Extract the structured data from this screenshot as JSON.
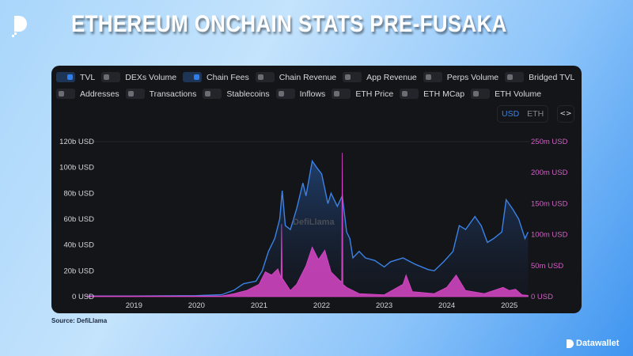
{
  "header": {
    "title": "ETHEREUM ONCHAIN STATS PRE-FUSAKA"
  },
  "legend": {
    "row1": [
      {
        "label": "TVL",
        "on": true
      },
      {
        "label": "DEXs Volume",
        "on": false
      },
      {
        "label": "Chain Fees",
        "on": true
      },
      {
        "label": "Chain Revenue",
        "on": false
      },
      {
        "label": "App Revenue",
        "on": false
      },
      {
        "label": "Perps Volume",
        "on": false
      },
      {
        "label": "Bridged TVL",
        "on": false
      }
    ],
    "row2": [
      {
        "label": "Addresses",
        "on": false
      },
      {
        "label": "Transactions",
        "on": false
      },
      {
        "label": "Stablecoins",
        "on": false
      },
      {
        "label": "Inflows",
        "on": false
      },
      {
        "label": "ETH Price",
        "on": false
      },
      {
        "label": "ETH MCap",
        "on": false
      },
      {
        "label": "ETH Volume",
        "on": false
      }
    ]
  },
  "unit_toggle": {
    "usd": "USD",
    "eth": "ETH",
    "selected": "USD"
  },
  "embed_label": "<>",
  "watermark": "DefiLlama",
  "source": "Source: DefiLlama",
  "brand": "Datawallet",
  "colors": {
    "tvl": "#3b82e6",
    "fees": "#d946c8",
    "accent": "#2f7ef0"
  },
  "chart_data": {
    "type": "area",
    "x_ticks": [
      "2019",
      "2020",
      "2021",
      "2022",
      "2023",
      "2024",
      "2025"
    ],
    "xlim": [
      2018.25,
      2025.32
    ],
    "y_left": {
      "ticks": [
        "0 USD",
        "20b USD",
        "40b USD",
        "60b USD",
        "80b USD",
        "100b USD",
        "120b USD"
      ],
      "lim": [
        0,
        120
      ],
      "unit": "b USD"
    },
    "y_right": {
      "ticks": [
        "0 USD",
        "50m USD",
        "100m USD",
        "150m USD",
        "200m USD",
        "250m USD"
      ],
      "lim": [
        0,
        250
      ],
      "unit": "m USD"
    },
    "series": [
      {
        "name": "TVL",
        "axis": "left",
        "color": "#3b82e6",
        "points": [
          [
            2018.25,
            0.5
          ],
          [
            2019,
            0.5
          ],
          [
            2020,
            0.8
          ],
          [
            2020.4,
            1.5
          ],
          [
            2020.6,
            5
          ],
          [
            2020.75,
            10
          ],
          [
            2020.95,
            12
          ],
          [
            2021.05,
            20
          ],
          [
            2021.15,
            35
          ],
          [
            2021.25,
            45
          ],
          [
            2021.33,
            60
          ],
          [
            2021.37,
            82
          ],
          [
            2021.42,
            55
          ],
          [
            2021.5,
            52
          ],
          [
            2021.6,
            68
          ],
          [
            2021.7,
            88
          ],
          [
            2021.75,
            78
          ],
          [
            2021.85,
            105
          ],
          [
            2021.92,
            100
          ],
          [
            2022.0,
            95
          ],
          [
            2022.1,
            72
          ],
          [
            2022.15,
            80
          ],
          [
            2022.25,
            70
          ],
          [
            2022.33,
            78
          ],
          [
            2022.4,
            50
          ],
          [
            2022.45,
            45
          ],
          [
            2022.5,
            30
          ],
          [
            2022.6,
            35
          ],
          [
            2022.7,
            30
          ],
          [
            2022.85,
            28
          ],
          [
            2023.0,
            23
          ],
          [
            2023.1,
            27
          ],
          [
            2023.3,
            30
          ],
          [
            2023.5,
            25
          ],
          [
            2023.7,
            21
          ],
          [
            2023.8,
            20
          ],
          [
            2023.95,
            27
          ],
          [
            2024.1,
            35
          ],
          [
            2024.2,
            55
          ],
          [
            2024.3,
            52
          ],
          [
            2024.45,
            62
          ],
          [
            2024.55,
            55
          ],
          [
            2024.65,
            42
          ],
          [
            2024.75,
            45
          ],
          [
            2024.88,
            50
          ],
          [
            2024.95,
            75
          ],
          [
            2025.05,
            68
          ],
          [
            2025.15,
            60
          ],
          [
            2025.25,
            45
          ],
          [
            2025.3,
            50
          ]
        ]
      },
      {
        "name": "Chain Fees",
        "axis": "right",
        "color": "#d946c8",
        "points": [
          [
            2018.25,
            1
          ],
          [
            2020.4,
            1
          ],
          [
            2020.6,
            5
          ],
          [
            2020.8,
            10
          ],
          [
            2021.0,
            20
          ],
          [
            2021.1,
            40
          ],
          [
            2021.2,
            35
          ],
          [
            2021.3,
            45
          ],
          [
            2021.35,
            30
          ],
          [
            2021.36,
            117
          ],
          [
            2021.37,
            30
          ],
          [
            2021.5,
            10
          ],
          [
            2021.6,
            20
          ],
          [
            2021.75,
            50
          ],
          [
            2021.85,
            80
          ],
          [
            2021.95,
            60
          ],
          [
            2022.05,
            75
          ],
          [
            2022.15,
            40
          ],
          [
            2022.3,
            25
          ],
          [
            2022.32,
            25
          ],
          [
            2022.33,
            232
          ],
          [
            2022.34,
            20
          ],
          [
            2022.4,
            15
          ],
          [
            2022.6,
            5
          ],
          [
            2023.0,
            3
          ],
          [
            2023.3,
            20
          ],
          [
            2023.35,
            35
          ],
          [
            2023.45,
            8
          ],
          [
            2023.8,
            5
          ],
          [
            2024.0,
            15
          ],
          [
            2024.15,
            35
          ],
          [
            2024.3,
            10
          ],
          [
            2024.6,
            5
          ],
          [
            2024.9,
            15
          ],
          [
            2025.0,
            10
          ],
          [
            2025.1,
            12
          ],
          [
            2025.2,
            3
          ],
          [
            2025.3,
            2
          ]
        ]
      }
    ]
  }
}
